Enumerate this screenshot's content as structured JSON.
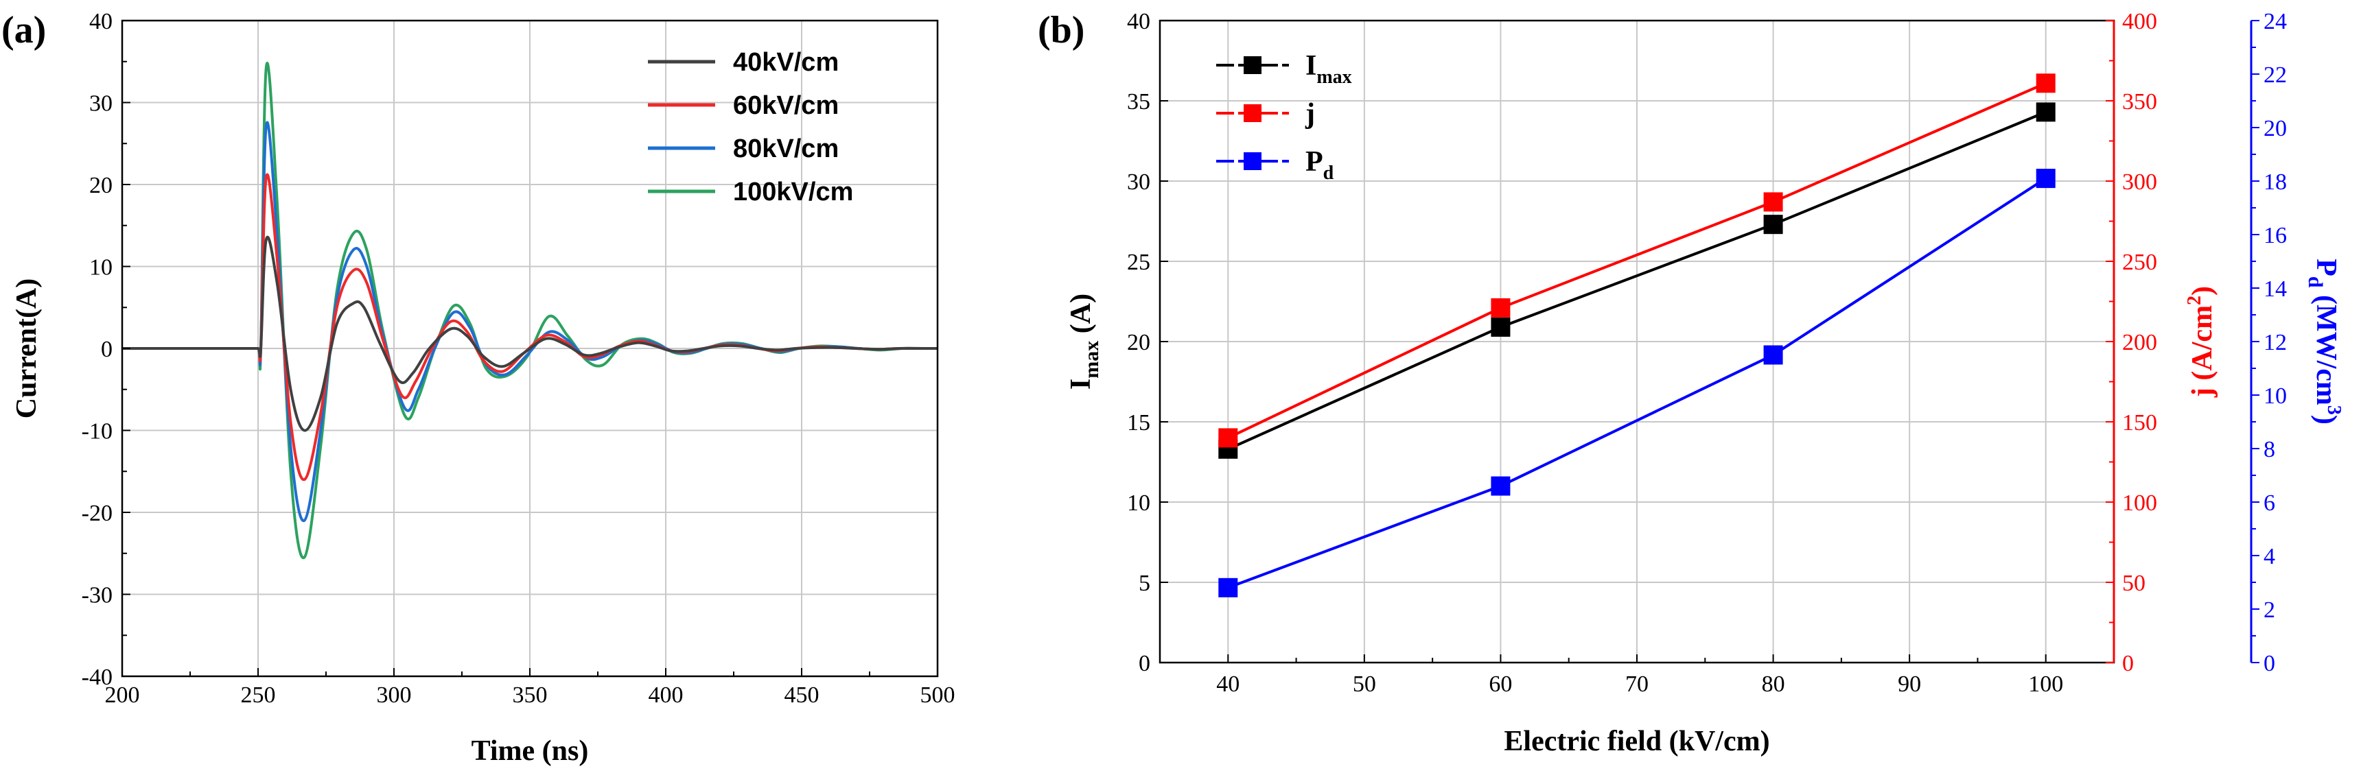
{
  "colors": {
    "black": "#404040",
    "red": "#ee2a2a",
    "blue": "#1f6fd0",
    "green": "#2ca25f",
    "mark_black": "#000000",
    "mark_red": "#ff0000",
    "mark_blue": "#0000ff"
  },
  "chart_data": [
    {
      "type": "line",
      "panel_label": "(a)",
      "xlabel": "Time (ns)",
      "ylabel": "Current(A)",
      "xlim": [
        200,
        500
      ],
      "ylim": [
        -40,
        40
      ],
      "xticks": [
        200,
        250,
        300,
        350,
        400,
        450,
        500
      ],
      "yticks": [
        -40,
        -30,
        -20,
        -10,
        0,
        10,
        20,
        30,
        40
      ],
      "grid": true,
      "legend_position": "top-right",
      "series": [
        {
          "name": "40kV/cm",
          "color_key": "black",
          "x": [
            200,
            250,
            251,
            253,
            257,
            262,
            267,
            273,
            279,
            285,
            289,
            295,
            302,
            307,
            313,
            321,
            327,
            333,
            340,
            348,
            356,
            363,
            370,
            376,
            383,
            390,
            396,
            402,
            408,
            414,
            420,
            427,
            434,
            441,
            448,
            456,
            463,
            470,
            478,
            486,
            494,
            500
          ],
          "y": [
            0,
            0,
            0,
            13.3,
            8,
            -5,
            -10,
            -6,
            3,
            5.5,
            5,
            0.5,
            -4,
            -3,
            0,
            2.4,
            1.5,
            -1,
            -2.2,
            -0.5,
            1.2,
            0.5,
            -0.8,
            -0.6,
            0.2,
            0.7,
            0.3,
            -0.3,
            -0.3,
            0,
            0.3,
            0.3,
            0,
            -0.2,
            0,
            0.1,
            0.1,
            0,
            -0.1,
            0,
            0,
            0
          ]
        },
        {
          "name": "60kV/cm",
          "color_key": "red",
          "x": [
            200,
            250,
            251,
            253,
            257,
            262,
            267,
            273,
            279,
            285,
            290,
            296,
            303,
            308,
            314,
            321,
            327,
            333,
            340,
            348,
            356,
            363,
            370,
            376,
            383,
            390,
            396,
            402,
            408,
            414,
            420,
            427,
            434,
            441,
            448,
            456,
            463,
            470,
            478,
            486,
            494,
            500
          ],
          "y": [
            0,
            0,
            0,
            20.9,
            11,
            -9,
            -16,
            -8,
            5,
            9.5,
            8,
            1,
            -5.8,
            -4,
            0,
            3.3,
            2,
            -1.5,
            -2.8,
            -0.5,
            1.6,
            0.8,
            -1,
            -0.8,
            0.3,
            0.9,
            0.4,
            -0.3,
            -0.4,
            0,
            0.4,
            0.4,
            0,
            -0.3,
            0,
            0.2,
            0.1,
            0,
            -0.1,
            0,
            0,
            0
          ]
        },
        {
          "name": "80kV/cm",
          "color_key": "blue",
          "x": [
            200,
            250,
            251,
            253,
            257,
            262,
            267,
            273,
            279,
            285,
            290,
            296,
            304,
            309,
            315,
            322,
            328,
            334,
            341,
            349,
            357,
            364,
            371,
            377,
            384,
            391,
            397,
            403,
            409,
            415,
            421,
            428,
            435,
            442,
            449,
            457,
            464,
            471,
            479,
            487,
            495,
            500
          ],
          "y": [
            0,
            0,
            0,
            27.2,
            14,
            -12,
            -21,
            -10,
            6,
            12,
            10,
            1.5,
            -7.3,
            -5,
            0,
            4.4,
            2.5,
            -2,
            -3.2,
            -0.8,
            2,
            1,
            -1.2,
            -1,
            0.4,
            1,
            0.5,
            -0.4,
            -0.5,
            0,
            0.5,
            0.5,
            0,
            -0.4,
            0,
            0.2,
            0.2,
            0,
            -0.1,
            0,
            0,
            0
          ]
        },
        {
          "name": "100kV/cm",
          "color_key": "green",
          "x": [
            200,
            250,
            251,
            253,
            257,
            262,
            267,
            273,
            279,
            285,
            290,
            296,
            304,
            309,
            315,
            322,
            328,
            334,
            341,
            349,
            357,
            364,
            371,
            377,
            384,
            391,
            397,
            403,
            409,
            415,
            421,
            428,
            435,
            442,
            449,
            457,
            464,
            471,
            479,
            487,
            495,
            500
          ],
          "y": [
            0,
            0,
            0,
            34.3,
            18,
            -15,
            -25.5,
            -12,
            7,
            14,
            12,
            2,
            -8.2,
            -6,
            0,
            5.2,
            3,
            -2.5,
            -3.4,
            -1,
            3.9,
            1.5,
            -1.5,
            -2,
            0.5,
            1.2,
            0.6,
            -0.5,
            -0.6,
            0,
            0.6,
            0.6,
            0,
            -0.5,
            0,
            0.3,
            0.2,
            0,
            -0.2,
            0,
            0,
            0
          ]
        }
      ]
    },
    {
      "type": "line",
      "panel_label": "(b)",
      "xlabel": "Electric field (kV/cm)",
      "xlim": [
        35,
        105
      ],
      "xticks": [
        40,
        50,
        60,
        70,
        80,
        90,
        100
      ],
      "grid": true,
      "legend_position": "top-left",
      "axes": {
        "left": {
          "title_main": "I",
          "title_sub": "max",
          "title_tail": " (A)",
          "ylim": [
            0,
            40
          ],
          "ticks": [
            0,
            5,
            10,
            15,
            20,
            25,
            30,
            35,
            40
          ],
          "color_key": "mark_black"
        },
        "right1": {
          "title_main": "j",
          "title_tail": " (A/cm",
          "title_sup": "2",
          "title_end": ")",
          "ylim": [
            0,
            400
          ],
          "ticks": [
            0,
            50,
            100,
            150,
            200,
            250,
            300,
            350,
            400
          ],
          "color_key": "mark_red"
        },
        "right2": {
          "title_main": "P",
          "title_sub": "d",
          "title_tail": " (MW/cm",
          "title_sup": "3",
          "title_end": ")",
          "ylim": [
            0,
            24
          ],
          "ticks": [
            0,
            2,
            4,
            6,
            8,
            10,
            12,
            14,
            16,
            18,
            20,
            22,
            24
          ],
          "color_key": "mark_blue"
        }
      },
      "x": [
        40,
        60,
        80,
        100
      ],
      "series": [
        {
          "name": "I",
          "name_sub": "max",
          "axis": "left",
          "color_key": "mark_black",
          "values": [
            13.3,
            20.9,
            27.3,
            34.3
          ]
        },
        {
          "name": "j",
          "axis": "right1",
          "color_key": "mark_red",
          "values": [
            140,
            221,
            287,
            361
          ]
        },
        {
          "name": "P",
          "name_sub": "d",
          "axis": "right2",
          "color_key": "mark_blue",
          "values": [
            2.8,
            6.6,
            11.5,
            18.1
          ]
        }
      ]
    }
  ]
}
